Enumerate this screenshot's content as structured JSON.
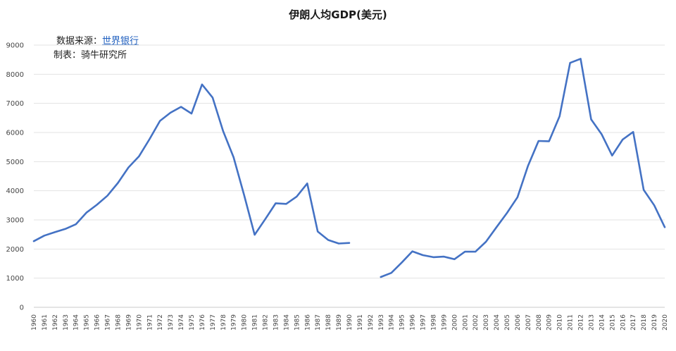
{
  "chart_data": {
    "type": "line",
    "title": "伊朗人均GDP(美元)",
    "xlabel": "",
    "ylabel": "",
    "ylim": [
      0,
      9000
    ],
    "yticks": [
      0,
      1000,
      2000,
      3000,
      4000,
      5000,
      6000,
      7000,
      8000,
      9000
    ],
    "grid": true,
    "legend": "none",
    "line_color": "#4472c4",
    "x": [
      "1960",
      "1961",
      "1962",
      "1963",
      "1964",
      "1965",
      "1966",
      "1967",
      "1968",
      "1969",
      "1970",
      "1971",
      "1972",
      "1973",
      "1974",
      "1975",
      "1976",
      "1977",
      "1978",
      "1979",
      "1980",
      "1981",
      "1982",
      "1983",
      "1984",
      "1985",
      "1986",
      "1987",
      "1988",
      "1989",
      "1990",
      "1991",
      "1992",
      "1993",
      "1994",
      "1995",
      "1996",
      "1997",
      "1998",
      "1999",
      "2000",
      "2001",
      "2002",
      "2003",
      "2004",
      "2005",
      "2006",
      "2007",
      "2008",
      "2009",
      "2010",
      "2011",
      "2012",
      "2013",
      "2014",
      "2015",
      "2016",
      "2017",
      "2018",
      "2019",
      "2020"
    ],
    "series": [
      {
        "values": [
          2270,
          2460,
          2580,
          2690,
          2850,
          3250,
          3520,
          3830,
          4270,
          4800,
          5180,
          5770,
          6400,
          6680,
          6880,
          6650,
          7650,
          7200,
          6050,
          5150,
          3850,
          2490,
          3020,
          3570,
          3550,
          3800,
          4250,
          2600,
          2310,
          2190,
          2210,
          null,
          null,
          1040,
          1180,
          1540,
          1920,
          1790,
          1720,
          1740,
          1650,
          1910,
          1910,
          2250,
          2750,
          3240,
          3780,
          4860,
          5710,
          5700,
          6560,
          8390,
          8530,
          6450,
          5940,
          5210,
          5760,
          6020,
          4030,
          3500,
          2750
        ]
      }
    ]
  },
  "source_note": {
    "label": "数据来源：",
    "link": "世界银行"
  },
  "maker_note": "制表：骑牛研究所"
}
